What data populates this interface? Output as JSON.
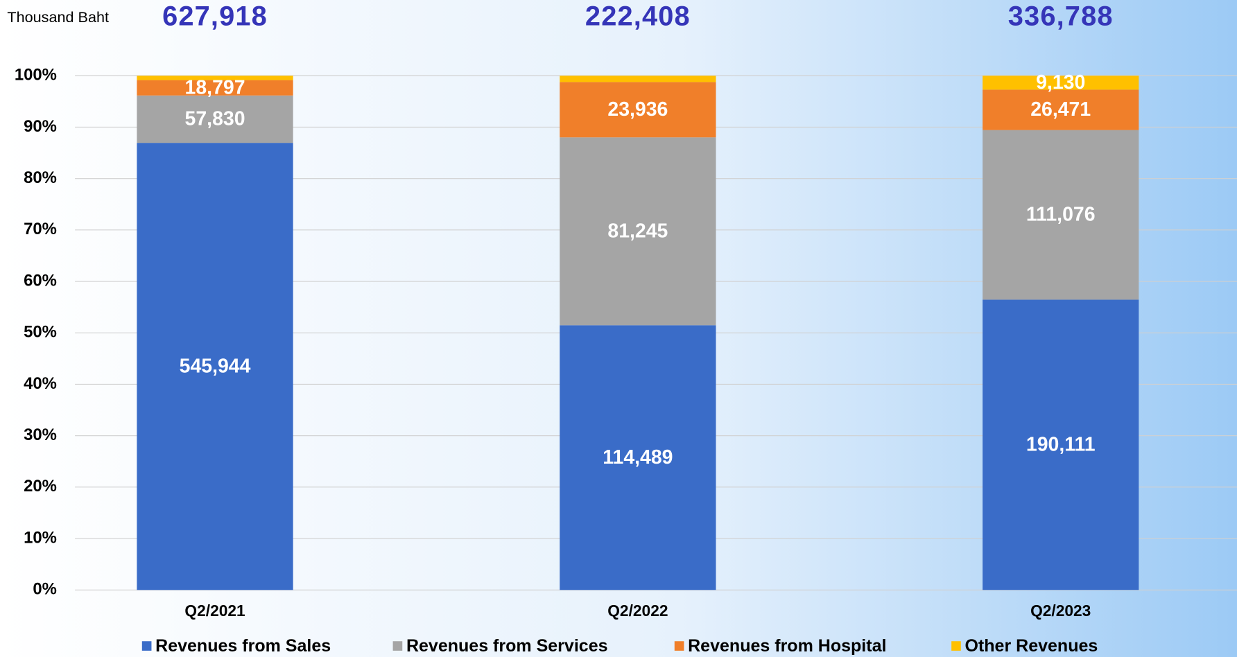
{
  "chart_data": {
    "type": "bar",
    "stack": "percent",
    "unit_label": "Thousand Baht",
    "categories": [
      "Q2/2021",
      "Q2/2022",
      "Q2/2023"
    ],
    "totals": [
      627918,
      222408,
      336788
    ],
    "total_labels": [
      "627,918",
      "222,408",
      "336,788"
    ],
    "series": [
      {
        "name": "Revenues from Sales",
        "color": "#3a6cc8",
        "values": [
          545944,
          114489,
          190111
        ],
        "value_labels": [
          "545,944",
          "114,489",
          "190,111"
        ]
      },
      {
        "name": "Revenues from Services",
        "color": "#a5a5a5",
        "values": [
          57830,
          81245,
          111076
        ],
        "value_labels": [
          "57,830",
          "81,245",
          "111,076"
        ]
      },
      {
        "name": "Revenues from Hospital",
        "color": "#f07f2a",
        "values": [
          18797,
          23936,
          26471
        ],
        "value_labels": [
          "18,797",
          "23,936",
          "26,471"
        ]
      },
      {
        "name": "Other Revenues",
        "color": "#ffc000",
        "values": [
          5347,
          2738,
          9130
        ],
        "value_labels": [
          null,
          null,
          "9,130"
        ]
      }
    ],
    "ylim": [
      0,
      100
    ],
    "yticks": [
      {
        "value": 0,
        "label": "0%"
      },
      {
        "value": 10,
        "label": "10%"
      },
      {
        "value": 20,
        "label": "20%"
      },
      {
        "value": 30,
        "label": "30%"
      },
      {
        "value": 40,
        "label": "40%"
      },
      {
        "value": 50,
        "label": "50%"
      },
      {
        "value": 60,
        "label": "60%"
      },
      {
        "value": 70,
        "label": "70%"
      },
      {
        "value": 80,
        "label": "80%"
      },
      {
        "value": 90,
        "label": "90%"
      },
      {
        "value": 100,
        "label": "100%"
      }
    ],
    "grid": true,
    "legend": "bottom"
  }
}
